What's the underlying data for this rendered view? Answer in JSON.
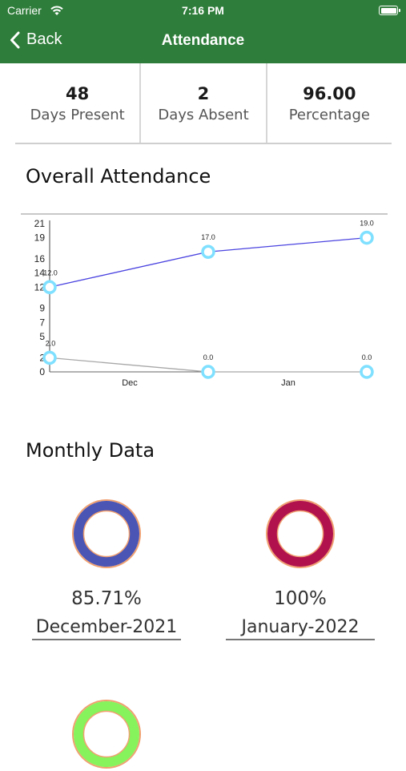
{
  "status_bar": {
    "carrier": "Carrier",
    "time": "7:16 PM"
  },
  "nav": {
    "back_label": "Back",
    "title": "Attendance"
  },
  "stats": [
    {
      "value": "48",
      "label": "Days Present"
    },
    {
      "value": "2",
      "label": "Days Absent"
    },
    {
      "value": "96.00",
      "label": "Percentage"
    }
  ],
  "overall_title": "Overall Attendance",
  "chart_data": {
    "type": "line",
    "categories": [
      "",
      "Dec",
      "Jan"
    ],
    "y_ticks": [
      0,
      2,
      5,
      7,
      9,
      12,
      14,
      16,
      19,
      21
    ],
    "ylim": [
      0,
      21
    ],
    "series": [
      {
        "values": [
          12.0,
          17.0,
          19.0
        ],
        "labels": [
          "12.0",
          "17.0",
          "19.0"
        ],
        "color": "#4b44e0"
      },
      {
        "values": [
          2.0,
          0.0,
          0.0
        ],
        "labels": [
          "2.0",
          "0.0",
          "0.0"
        ],
        "color": "#a8a8a8"
      }
    ],
    "marker_color": "#7fe0ff"
  },
  "monthly_title": "Monthly Data",
  "monthly": [
    {
      "percent": "85.71%",
      "month": "December-2021",
      "ring_color": "#4a55b4",
      "edge_color": "#f0a070"
    },
    {
      "percent": "100%",
      "month": "January-2022",
      "ring_color": "#b1124d",
      "edge_color": "#f0a070"
    },
    {
      "ring_color": "#86f25c",
      "edge_color": "#f0a070"
    }
  ]
}
